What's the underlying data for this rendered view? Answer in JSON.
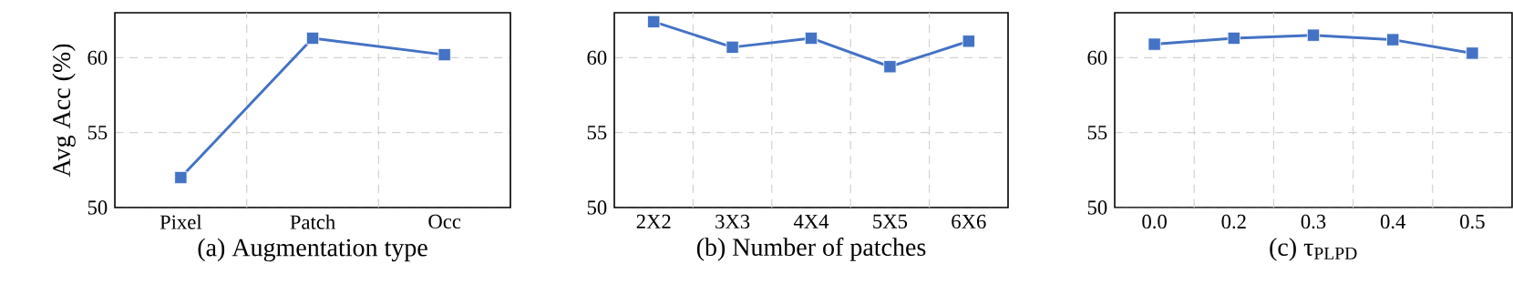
{
  "chart_data": [
    {
      "type": "line",
      "xlabel": "(a) Augmentation type",
      "ylabel": "Avg Acc (%)",
      "categories": [
        "Pixel",
        "Patch",
        "Occ"
      ],
      "values": [
        52.0,
        61.3,
        60.2
      ],
      "color": "#4472c4",
      "ylim": [
        50,
        63
      ],
      "yticks": [
        50,
        55,
        60
      ],
      "grid": true,
      "marker": "square",
      "line_style": "solid"
    },
    {
      "type": "line",
      "xlabel": "(b) Number of patches",
      "categories": [
        "2X2",
        "3X3",
        "4X4",
        "5X5",
        "6X6"
      ],
      "values": [
        62.4,
        60.7,
        61.3,
        59.4,
        61.1
      ],
      "color": "#4472c4",
      "ylim": [
        50,
        63
      ],
      "yticks": [
        50,
        55,
        60
      ],
      "grid": true,
      "marker": "square",
      "line_style": "solid"
    },
    {
      "type": "line",
      "xlabel": "(c) τ$_{PLPD}$",
      "categories": [
        "0.0",
        "0.2",
        "0.3",
        "0.4",
        "0.5"
      ],
      "values": [
        60.9,
        61.3,
        61.5,
        61.2,
        60.3
      ],
      "color": "#4472c4",
      "ylim": [
        50,
        63
      ],
      "yticks": [
        50,
        55,
        60
      ],
      "grid": true,
      "marker": "square",
      "line_style": "solid"
    }
  ]
}
